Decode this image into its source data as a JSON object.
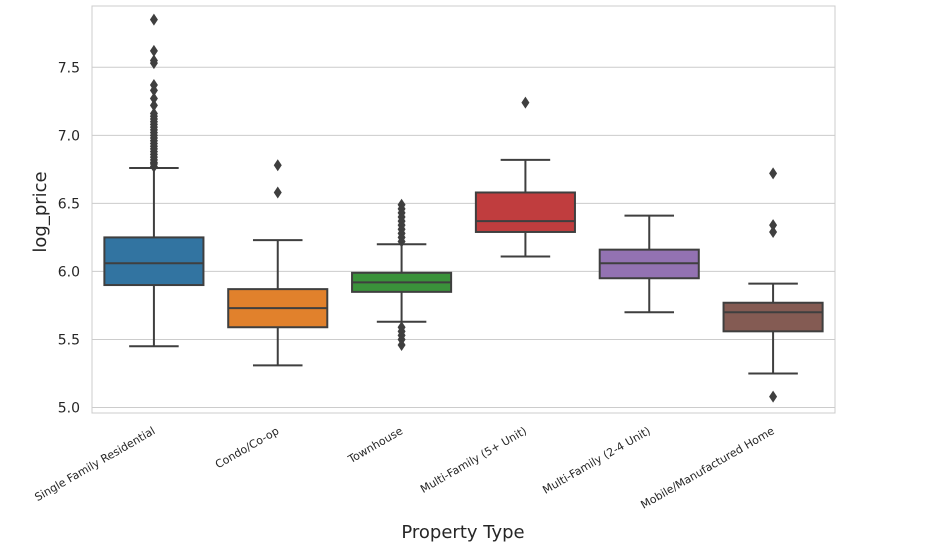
{
  "chart_data": {
    "type": "box",
    "xlabel": "Property Type",
    "ylabel": "log_price",
    "ylim": [
      4.96,
      7.95
    ],
    "yticks": [
      "5.0",
      "5.5",
      "6.0",
      "6.5",
      "7.0",
      "7.5"
    ],
    "grid": true,
    "categories": [
      "Single Family Residential",
      "Condo/Co-op",
      "Townhouse",
      "Multi-Family (5+ Unit)",
      "Multi-Family (2-4 Unit)",
      "Mobile/Manufactured Home"
    ],
    "boxes": [
      {
        "name": "Single Family Residential",
        "color": "#3274a1",
        "whisker_low": 5.45,
        "q1": 5.9,
        "median": 6.06,
        "q3": 6.25,
        "whisker_high": 6.76,
        "outliers": [
          6.77,
          6.79,
          6.8,
          6.82,
          6.84,
          6.86,
          6.88,
          6.9,
          6.92,
          6.94,
          6.96,
          6.98,
          7.0,
          7.02,
          7.04,
          7.06,
          7.08,
          7.1,
          7.12,
          7.14,
          7.16,
          7.22,
          7.27,
          7.33,
          7.37,
          7.53,
          7.55,
          7.62,
          7.85
        ]
      },
      {
        "name": "Condo/Co-op",
        "color": "#e1812c",
        "whisker_low": 5.31,
        "q1": 5.59,
        "median": 5.73,
        "q3": 5.87,
        "whisker_high": 6.23,
        "outliers": [
          6.58,
          6.78
        ]
      },
      {
        "name": "Townhouse",
        "color": "#3a923a",
        "whisker_low": 5.63,
        "q1": 5.85,
        "median": 5.92,
        "q3": 5.99,
        "whisker_high": 6.2,
        "outliers": [
          5.46,
          5.5,
          5.53,
          5.56,
          5.59,
          6.22,
          6.25,
          6.28,
          6.31,
          6.34,
          6.37,
          6.4,
          6.43,
          6.46,
          6.49
        ]
      },
      {
        "name": "Multi-Family (5+ Unit)",
        "color": "#c03d3e",
        "whisker_low": 6.11,
        "q1": 6.29,
        "median": 6.37,
        "q3": 6.58,
        "whisker_high": 6.82,
        "outliers": [
          7.24
        ]
      },
      {
        "name": "Multi-Family (2-4 Unit)",
        "color": "#9372b2",
        "whisker_low": 5.7,
        "q1": 5.95,
        "median": 6.06,
        "q3": 6.16,
        "whisker_high": 6.41,
        "outliers": []
      },
      {
        "name": "Mobile/Manufactured Home",
        "color": "#845b53",
        "whisker_low": 5.25,
        "q1": 5.56,
        "median": 5.7,
        "q3": 5.77,
        "whisker_high": 5.91,
        "outliers": [
          5.08,
          6.29,
          6.34,
          6.72
        ]
      }
    ]
  }
}
